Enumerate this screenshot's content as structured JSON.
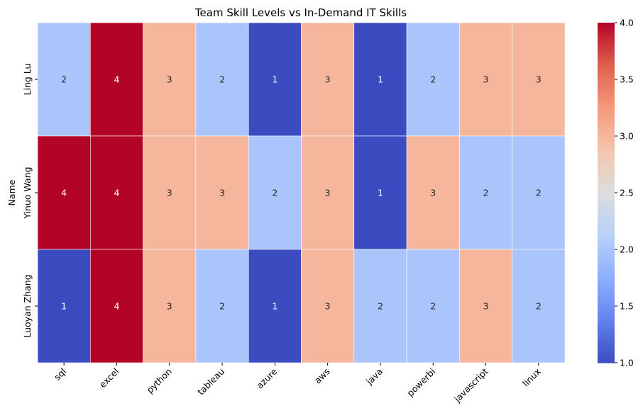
{
  "chart_data": {
    "type": "heatmap",
    "title": "Team Skill Levels vs In-Demand IT Skills",
    "xlabel": "",
    "ylabel": "Name",
    "x_categories": [
      "sql",
      "excel",
      "python",
      "tableau",
      "azure",
      "aws",
      "java",
      "powerbi",
      "javascript",
      "linux"
    ],
    "y_categories": [
      "Ling Lu",
      "Yinuo Wang",
      "Luoyan Zhang"
    ],
    "values": [
      [
        2,
        4,
        3,
        2,
        1,
        3,
        1,
        2,
        3,
        3
      ],
      [
        4,
        4,
        3,
        3,
        2,
        3,
        1,
        3,
        2,
        2
      ],
      [
        1,
        4,
        3,
        2,
        1,
        3,
        2,
        2,
        3,
        2
      ]
    ],
    "annotations": [
      [
        "2",
        "4",
        "3",
        "2",
        "1",
        "3",
        "1",
        "2",
        "3",
        "3"
      ],
      [
        "4",
        "4",
        "3",
        "3",
        "2",
        "3",
        "1",
        "3",
        "2",
        "2"
      ],
      [
        "1",
        "4",
        "3",
        "2",
        "1",
        "3",
        "2",
        "2",
        "3",
        "2"
      ]
    ],
    "colormap": "coolwarm",
    "color_range": [
      1.0,
      4.0
    ],
    "colorbar_ticks": [
      1.0,
      1.5,
      2.0,
      2.5,
      3.0,
      3.5,
      4.0
    ],
    "colorbar_tick_labels": [
      "1.0",
      "1.5",
      "2.0",
      "2.5",
      "3.0",
      "3.5",
      "4.0"
    ],
    "colors": {
      "low": "#3b4cc0",
      "mid": "#dddddd",
      "high": "#b40426",
      "cell_border": "#ffffff"
    },
    "grid": false,
    "legend": "colorbar-right"
  }
}
